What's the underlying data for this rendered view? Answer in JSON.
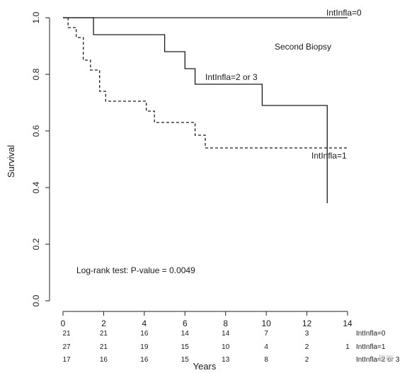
{
  "chart_data": {
    "type": "line",
    "title": "",
    "xlabel": "Years",
    "ylabel": "Survival",
    "xlim": [
      0,
      14
    ],
    "ylim": [
      0,
      1
    ],
    "x_ticks": [
      "0",
      "2",
      "4",
      "6",
      "8",
      "10",
      "12",
      "14"
    ],
    "y_ticks": [
      "0.0",
      "0.2",
      "0.4",
      "0.6",
      "0.8",
      "1.0"
    ],
    "series": [
      {
        "name": "IntInfla=0",
        "style": "solid",
        "points": [
          [
            0,
            1.0
          ],
          [
            14,
            1.0
          ]
        ]
      },
      {
        "name": "IntInfla=2 or 3",
        "style": "solid",
        "points": [
          [
            0,
            1.0
          ],
          [
            1.5,
            1.0
          ],
          [
            1.5,
            0.94
          ],
          [
            5.0,
            0.94
          ],
          [
            5.0,
            0.88
          ],
          [
            6.0,
            0.88
          ],
          [
            6.0,
            0.82
          ],
          [
            6.5,
            0.82
          ],
          [
            6.5,
            0.765
          ],
          [
            9.8,
            0.765
          ],
          [
            9.8,
            0.69
          ],
          [
            13.0,
            0.69
          ],
          [
            13.0,
            0.345
          ]
        ]
      },
      {
        "name": "IntInfla=1",
        "style": "dashed",
        "points": [
          [
            0,
            1.0
          ],
          [
            0.25,
            1.0
          ],
          [
            0.25,
            0.965
          ],
          [
            0.65,
            0.965
          ],
          [
            0.65,
            0.93
          ],
          [
            1.0,
            0.93
          ],
          [
            1.0,
            0.85
          ],
          [
            1.35,
            0.85
          ],
          [
            1.35,
            0.815
          ],
          [
            1.8,
            0.815
          ],
          [
            1.8,
            0.74
          ],
          [
            2.1,
            0.74
          ],
          [
            2.1,
            0.705
          ],
          [
            4.1,
            0.705
          ],
          [
            4.1,
            0.67
          ],
          [
            4.5,
            0.67
          ],
          [
            4.5,
            0.63
          ],
          [
            6.5,
            0.63
          ],
          [
            6.5,
            0.585
          ],
          [
            7.0,
            0.585
          ],
          [
            7.0,
            0.54
          ],
          [
            14.0,
            0.54
          ]
        ]
      }
    ],
    "annotations": {
      "panel": "Second Biopsy",
      "test": "Log-rank test: P-value = 0.0049",
      "label_0": "IntInfla=0",
      "label_1": "IntInfla=1",
      "label_23": "IntInfla=2 or 3"
    },
    "risk_table": {
      "times": [
        0,
        2,
        4,
        6,
        8,
        10,
        12
      ],
      "rows": [
        {
          "label": "IntInfla=0",
          "counts": [
            "21",
            "21",
            "16",
            "14",
            "14",
            "7",
            "3"
          ]
        },
        {
          "label": "IntInfla=1",
          "counts": [
            "27",
            "21",
            "19",
            "15",
            "10",
            "4",
            "2"
          ],
          "extra": "1"
        },
        {
          "label": "IntInfla=2 or 3",
          "counts": [
            "17",
            "16",
            "16",
            "15",
            "13",
            "8",
            "2"
          ]
        }
      ]
    },
    "grid": false
  },
  "watermark": "医咖"
}
